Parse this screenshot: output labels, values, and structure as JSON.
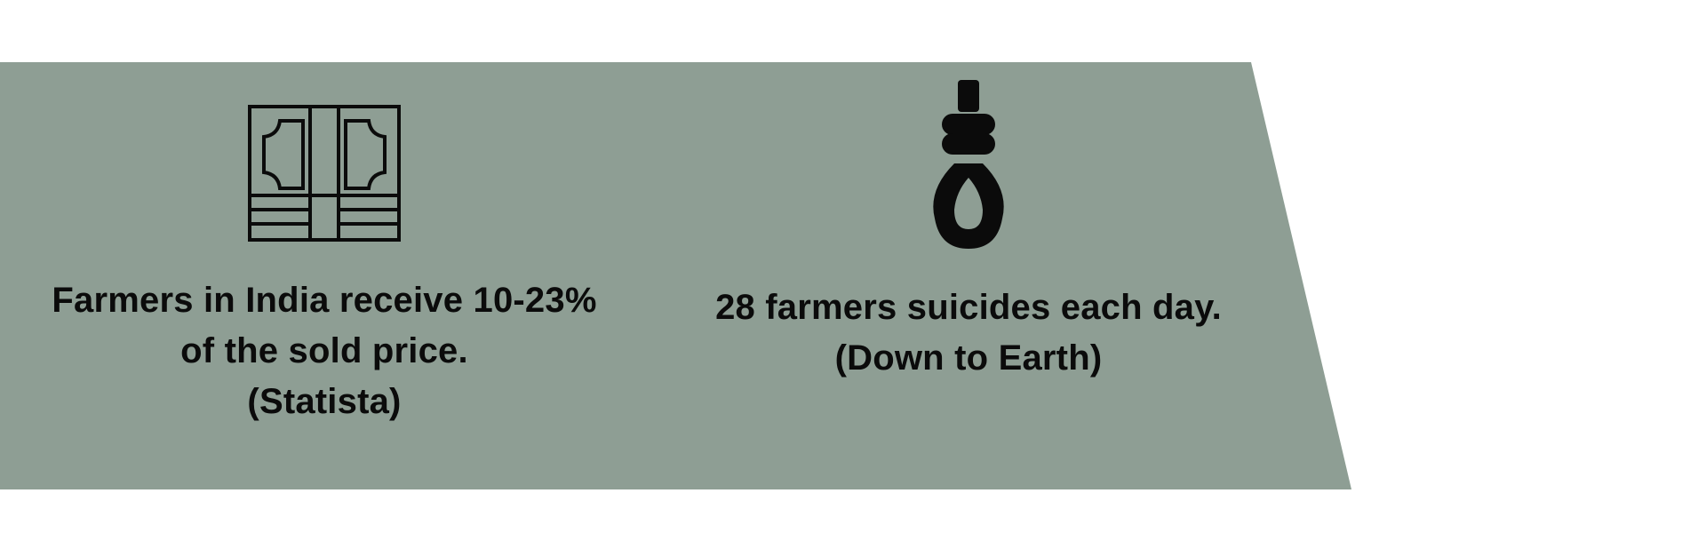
{
  "colors": {
    "banner_fill": "#8e9e94",
    "text": "#0b0b0b",
    "icon": "#0b0b0b",
    "background": "#ffffff"
  },
  "stats": [
    {
      "icon": "money-bills-icon",
      "lines": [
        "Farmers in India receive 10-23%",
        "of the sold price.",
        "(Statista)"
      ]
    },
    {
      "icon": "noose-icon",
      "lines": [
        "28 farmers suicides each day.",
        "(Down to Earth)"
      ]
    }
  ]
}
